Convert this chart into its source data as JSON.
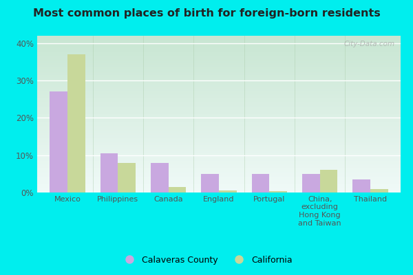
{
  "title": "Most common places of birth for foreign-born residents",
  "categories": [
    "Mexico",
    "Philippines",
    "Canada",
    "England",
    "Portugal",
    "China,\nexcluding\nHong Kong\nand Taiwan",
    "Thailand"
  ],
  "calaveras": [
    27,
    10.5,
    8,
    5,
    5,
    5,
    3.5
  ],
  "california": [
    37,
    8,
    1.5,
    0.5,
    0.3,
    6,
    1
  ],
  "color_calaveras": "#c9a8e0",
  "color_california": "#c8d89a",
  "background_top": "#f0faf8",
  "background_bottom": "#d4eedd",
  "background_outer": "#00eeee",
  "ylim": [
    0,
    42
  ],
  "yticks": [
    0,
    10,
    20,
    30,
    40
  ],
  "legend_labels": [
    "Calaveras County",
    "California"
  ],
  "watermark": "City-Data.com",
  "bar_width": 0.35
}
